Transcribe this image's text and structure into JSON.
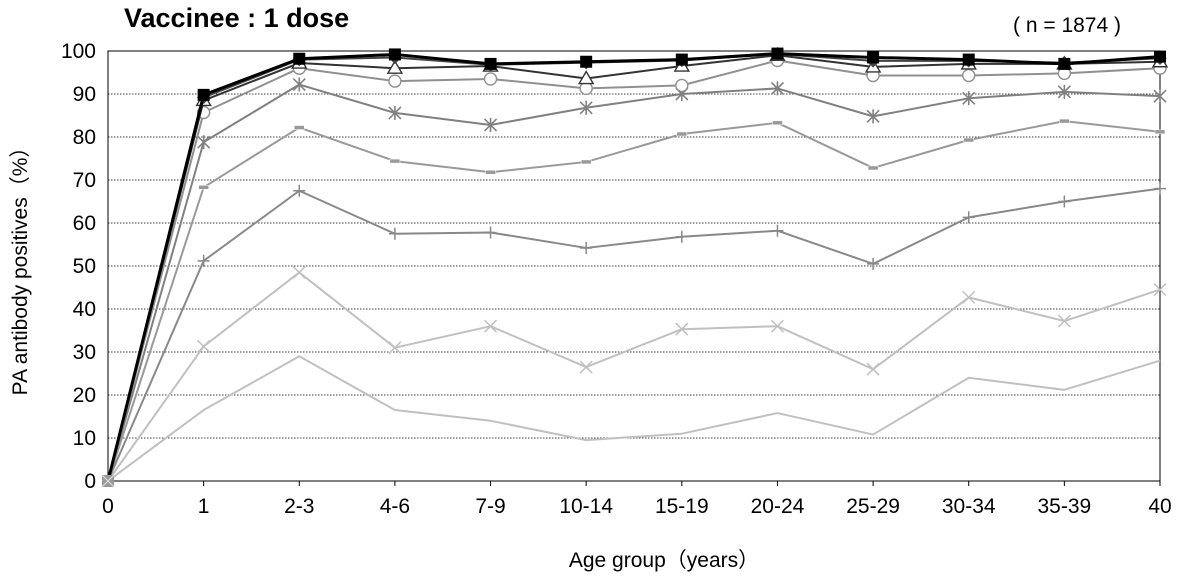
{
  "chart_data": {
    "type": "line",
    "title": "Vaccinee : 1 dose",
    "annotation": "( n = 1874 )",
    "xlabel": "Age group（years）",
    "ylabel": "PA antibody positives（%）",
    "categories": [
      "0",
      "1",
      "2-3",
      "4-6",
      "7-9",
      "10-14",
      "15-19",
      "20-24",
      "25-29",
      "30-34",
      "35-39",
      "40"
    ],
    "ylim": [
      0,
      100
    ],
    "yticks": [
      0,
      10,
      20,
      30,
      40,
      50,
      60,
      70,
      80,
      90,
      100
    ],
    "grid": "horizontal",
    "legend": "none",
    "series": [
      {
        "marker": "none",
        "color": "#c0c0c0",
        "values": [
          0,
          16.5,
          29,
          16.5,
          14,
          9.5,
          11,
          15.8,
          10.8,
          24,
          21.2,
          28
        ]
      },
      {
        "marker": "x",
        "color": "#c0c0c0",
        "values": [
          0,
          31.3,
          48.5,
          31,
          36,
          26.5,
          35.3,
          36,
          26,
          42.7,
          37.2,
          44.5
        ]
      },
      {
        "marker": "plus",
        "color": "#888888",
        "values": [
          0,
          51.2,
          67.5,
          57.5,
          57.8,
          54.2,
          56.8,
          58.2,
          50.5,
          61.3,
          65,
          68
        ]
      },
      {
        "marker": "dash",
        "color": "#999999",
        "values": [
          0,
          68.3,
          82.2,
          74.4,
          71.8,
          74.2,
          80.7,
          83.3,
          72.8,
          79.3,
          83.7,
          81.2
        ]
      },
      {
        "marker": "asterisk",
        "color": "#808080",
        "values": [
          0,
          78.8,
          92.2,
          85.6,
          82.8,
          86.8,
          90,
          91.3,
          84.8,
          89,
          90.5,
          89.5
        ]
      },
      {
        "marker": "open-circle",
        "color": "#909090",
        "values": [
          0,
          85.7,
          96,
          93,
          93.5,
          91.3,
          92,
          97.8,
          94.3,
          94.3,
          94.8,
          96
        ]
      },
      {
        "marker": "open-triangle",
        "color": "#333333",
        "values": [
          0,
          88.5,
          97.2,
          96,
          96.5,
          93.6,
          96.5,
          99,
          96.3,
          97,
          97,
          97.5
        ]
      },
      {
        "marker": "diamond",
        "color": "#444444",
        "values": [
          0,
          89.2,
          98,
          98.5,
          96.8,
          97.3,
          97.8,
          99.3,
          97.7,
          97.7,
          97.3,
          98.3
        ]
      },
      {
        "marker": "filled-square",
        "color": "#000000",
        "values": [
          0,
          89.8,
          98.2,
          99.2,
          97,
          97.5,
          98,
          99.4,
          98.5,
          98,
          97,
          98.7
        ]
      }
    ]
  }
}
